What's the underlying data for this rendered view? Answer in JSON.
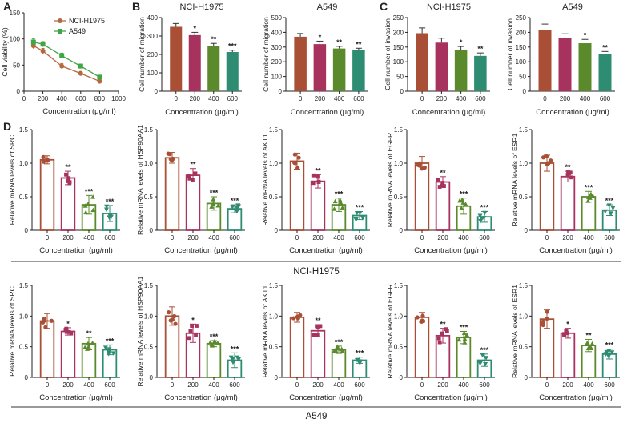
{
  "panel_letters": [
    "A",
    "B",
    "C",
    "D"
  ],
  "group_labels": [
    "NCI-H1975",
    "A549"
  ],
  "colors": {
    "panelA": [
      "#b5683e",
      "#3fa645"
    ],
    "panelB": [
      "#a84f35",
      "#a8325e",
      "#5b8a2d",
      "#2e8c72"
    ],
    "panelD": [
      "#a84f35",
      "#a8325e",
      "#5b8a2d",
      "#2e8c72"
    ]
  },
  "chart_data": [
    {
      "id": "A",
      "type": "line",
      "title": "",
      "xlabel": "Concentration (μg/ml)",
      "ylabel": "Cell viability (%)",
      "xlim": [
        0,
        1000
      ],
      "ylim": [
        0,
        150
      ],
      "xticks": [
        "0",
        "200",
        "400",
        "600",
        "800",
        "1000"
      ],
      "yticks": [
        "0",
        "50",
        "100",
        "150"
      ],
      "x": [
        100,
        200,
        400,
        600,
        800
      ],
      "series": [
        {
          "name": "NCI-H1975",
          "values": [
            87,
            77,
            48,
            34,
            19
          ],
          "errors": [
            6,
            5,
            5,
            4,
            3
          ]
        },
        {
          "name": "A549",
          "values": [
            94,
            90,
            68,
            48,
            27
          ],
          "errors": [
            6,
            5,
            5,
            4,
            3
          ]
        }
      ]
    },
    {
      "id": "B1",
      "type": "bar",
      "title": "NCI-H1975",
      "xlabel": "Concentration (μg/ml)",
      "ylabel": "Cell number of migration",
      "categories": [
        "0",
        "200",
        "400",
        "600"
      ],
      "values": [
        350,
        305,
        245,
        213
      ],
      "errors": [
        18,
        15,
        15,
        10
      ],
      "significance": [
        "",
        "*",
        "**",
        "***"
      ],
      "ylim": [
        0,
        400
      ],
      "yticks": [
        "0",
        "100",
        "200",
        "300",
        "400"
      ],
      "points": false
    },
    {
      "id": "B2",
      "type": "bar",
      "title": "A549",
      "xlabel": "Concentration (μg/ml)",
      "ylabel": "Cell number of migration",
      "categories": [
        "0",
        "200",
        "400",
        "600"
      ],
      "values": [
        370,
        320,
        290,
        280
      ],
      "errors": [
        22,
        20,
        15,
        12
      ],
      "significance": [
        "",
        "*",
        "**",
        "**"
      ],
      "ylim": [
        0,
        500
      ],
      "yticks": [
        "0",
        "100",
        "200",
        "300",
        "400",
        "500"
      ],
      "points": false
    },
    {
      "id": "C1",
      "type": "bar",
      "title": "NCI-H1975",
      "xlabel": "Concentration (μg/ml)",
      "ylabel": "Cell number of invasion",
      "categories": [
        "0",
        "200",
        "400",
        "600"
      ],
      "values": [
        197,
        165,
        140,
        120
      ],
      "errors": [
        18,
        15,
        12,
        10
      ],
      "significance": [
        "",
        "",
        "*",
        "**"
      ],
      "ylim": [
        0,
        250
      ],
      "yticks": [
        "0",
        "50",
        "100",
        "150",
        "200",
        "250"
      ],
      "points": false
    },
    {
      "id": "C2",
      "type": "bar",
      "title": "A549",
      "xlabel": "Concentration (μg/ml)",
      "ylabel": "Cell number of invasion",
      "categories": [
        "0",
        "200",
        "400",
        "600"
      ],
      "values": [
        208,
        180,
        163,
        125
      ],
      "errors": [
        20,
        15,
        13,
        10
      ],
      "significance": [
        "",
        "",
        "*",
        "**"
      ],
      "ylim": [
        0,
        250
      ],
      "yticks": [
        "0",
        "50",
        "100",
        "150",
        "200",
        "250"
      ],
      "points": false
    },
    {
      "id": "D1",
      "type": "bar",
      "title": "",
      "xlabel": "Concentration (μg/ml)",
      "ylabel": "Relative mRNA levels of SRC",
      "categories": [
        "0",
        "200",
        "400",
        "600"
      ],
      "values": [
        1.05,
        0.78,
        0.38,
        0.25
      ],
      "errors": [
        0.06,
        0.1,
        0.14,
        0.12
      ],
      "significance": [
        "",
        "**",
        "***",
        "***"
      ],
      "ylim": [
        0,
        1.5
      ],
      "yticks": [
        "0",
        "0.5",
        "1.0",
        "1.5"
      ],
      "points": true
    },
    {
      "id": "D2",
      "type": "bar",
      "title": "",
      "xlabel": "Concentration (μg/ml)",
      "ylabel": "Relative mRNA levels of HSP90AA1",
      "categories": [
        "0",
        "200",
        "400",
        "600"
      ],
      "values": [
        1.08,
        0.82,
        0.4,
        0.32
      ],
      "errors": [
        0.08,
        0.1,
        0.1,
        0.06
      ],
      "significance": [
        "",
        "**",
        "***",
        "***"
      ],
      "ylim": [
        0,
        1.5
      ],
      "yticks": [
        "0",
        "0.5",
        "1.0",
        "1.5"
      ],
      "points": true
    },
    {
      "id": "D3",
      "type": "bar",
      "title": "",
      "xlabel": "Concentration (μg/ml)",
      "ylabel": "Relative mRNA levels of AKT1",
      "categories": [
        "0",
        "200",
        "400",
        "600"
      ],
      "values": [
        1.03,
        0.73,
        0.38,
        0.22
      ],
      "errors": [
        0.12,
        0.1,
        0.1,
        0.06
      ],
      "significance": [
        "",
        "**",
        "***",
        "***"
      ],
      "ylim": [
        0,
        1.5
      ],
      "yticks": [
        "0",
        "0.5",
        "1.0",
        "1.5"
      ],
      "points": true
    },
    {
      "id": "D4",
      "type": "bar",
      "title": "",
      "xlabel": "Concentration (μg/ml)",
      "ylabel": "Relative mRNA levels of EGFR",
      "categories": [
        "0",
        "200",
        "400",
        "600"
      ],
      "values": [
        1.0,
        0.72,
        0.36,
        0.2
      ],
      "errors": [
        0.1,
        0.08,
        0.12,
        0.08
      ],
      "significance": [
        "",
        "**",
        "***",
        "***"
      ],
      "ylim": [
        0,
        1.5
      ],
      "yticks": [
        "0",
        "0.5",
        "1.0",
        "1.5"
      ],
      "points": true
    },
    {
      "id": "D5",
      "type": "bar",
      "title": "",
      "xlabel": "Concentration (μg/ml)",
      "ylabel": "Relative mRNA levels of ESR1",
      "categories": [
        "0",
        "200",
        "400",
        "600"
      ],
      "values": [
        1.0,
        0.8,
        0.5,
        0.3
      ],
      "errors": [
        0.12,
        0.08,
        0.08,
        0.08
      ],
      "significance": [
        "",
        "**",
        "***",
        "***"
      ],
      "ylim": [
        0,
        1.5
      ],
      "yticks": [
        "0",
        "0.5",
        "1.0",
        "1.5"
      ],
      "points": true
    },
    {
      "id": "E1",
      "type": "bar",
      "title": "",
      "xlabel": "Concentration (μg/ml)",
      "ylabel": "Relative mRNA levels of SRC",
      "categories": [
        "0",
        "200",
        "400",
        "600"
      ],
      "values": [
        0.92,
        0.75,
        0.55,
        0.45
      ],
      "errors": [
        0.12,
        0.06,
        0.1,
        0.08
      ],
      "significance": [
        "",
        "*",
        "**",
        "***"
      ],
      "ylim": [
        0,
        1.5
      ],
      "yticks": [
        "0",
        "0.5",
        "1.0",
        "1.5"
      ],
      "points": true
    },
    {
      "id": "E2",
      "type": "bar",
      "title": "",
      "xlabel": "Concentration (μg/ml)",
      "ylabel": "Relative mRNA levels of HSP90AA1",
      "categories": [
        "0",
        "200",
        "400",
        "600"
      ],
      "values": [
        1.0,
        0.72,
        0.55,
        0.28
      ],
      "errors": [
        0.15,
        0.15,
        0.05,
        0.12
      ],
      "significance": [
        "",
        "*",
        "***",
        "***"
      ],
      "ylim": [
        0,
        1.5
      ],
      "yticks": [
        "0",
        "0.5",
        "1.0",
        "1.5"
      ],
      "points": true
    },
    {
      "id": "E3",
      "type": "bar",
      "title": "",
      "xlabel": "Concentration (μg/ml)",
      "ylabel": "Relative mRNA levels of AKT1",
      "categories": [
        "0",
        "200",
        "400",
        "600"
      ],
      "values": [
        0.98,
        0.76,
        0.45,
        0.28
      ],
      "errors": [
        0.08,
        0.1,
        0.06,
        0.05
      ],
      "significance": [
        "",
        "**",
        "***",
        "***"
      ],
      "ylim": [
        0,
        1.5
      ],
      "yticks": [
        "0",
        "0.5",
        "1.0",
        "1.5"
      ],
      "points": true
    },
    {
      "id": "E4",
      "type": "bar",
      "title": "",
      "xlabel": "Concentration (μg/ml)",
      "ylabel": "Relative mRNA levels of EGFR",
      "categories": [
        "0",
        "200",
        "400",
        "600"
      ],
      "values": [
        0.98,
        0.68,
        0.65,
        0.28
      ],
      "errors": [
        0.08,
        0.12,
        0.1,
        0.1
      ],
      "significance": [
        "",
        "**",
        "***",
        "***"
      ],
      "ylim": [
        0,
        1.5
      ],
      "yticks": [
        "0",
        "0.5",
        "1.0",
        "1.5"
      ],
      "points": true
    },
    {
      "id": "E5",
      "type": "bar",
      "title": "",
      "xlabel": "Concentration (μg/ml)",
      "ylabel": "Relative mRNA levels of ESR1",
      "categories": [
        "0",
        "200",
        "400",
        "600"
      ],
      "values": [
        0.95,
        0.72,
        0.52,
        0.38
      ],
      "errors": [
        0.15,
        0.08,
        0.1,
        0.08
      ],
      "significance": [
        "",
        "*",
        "**",
        "***"
      ],
      "ylim": [
        0,
        1.5
      ],
      "yticks": [
        "0",
        "0.5",
        "1.0",
        "1.5"
      ],
      "points": true
    }
  ]
}
